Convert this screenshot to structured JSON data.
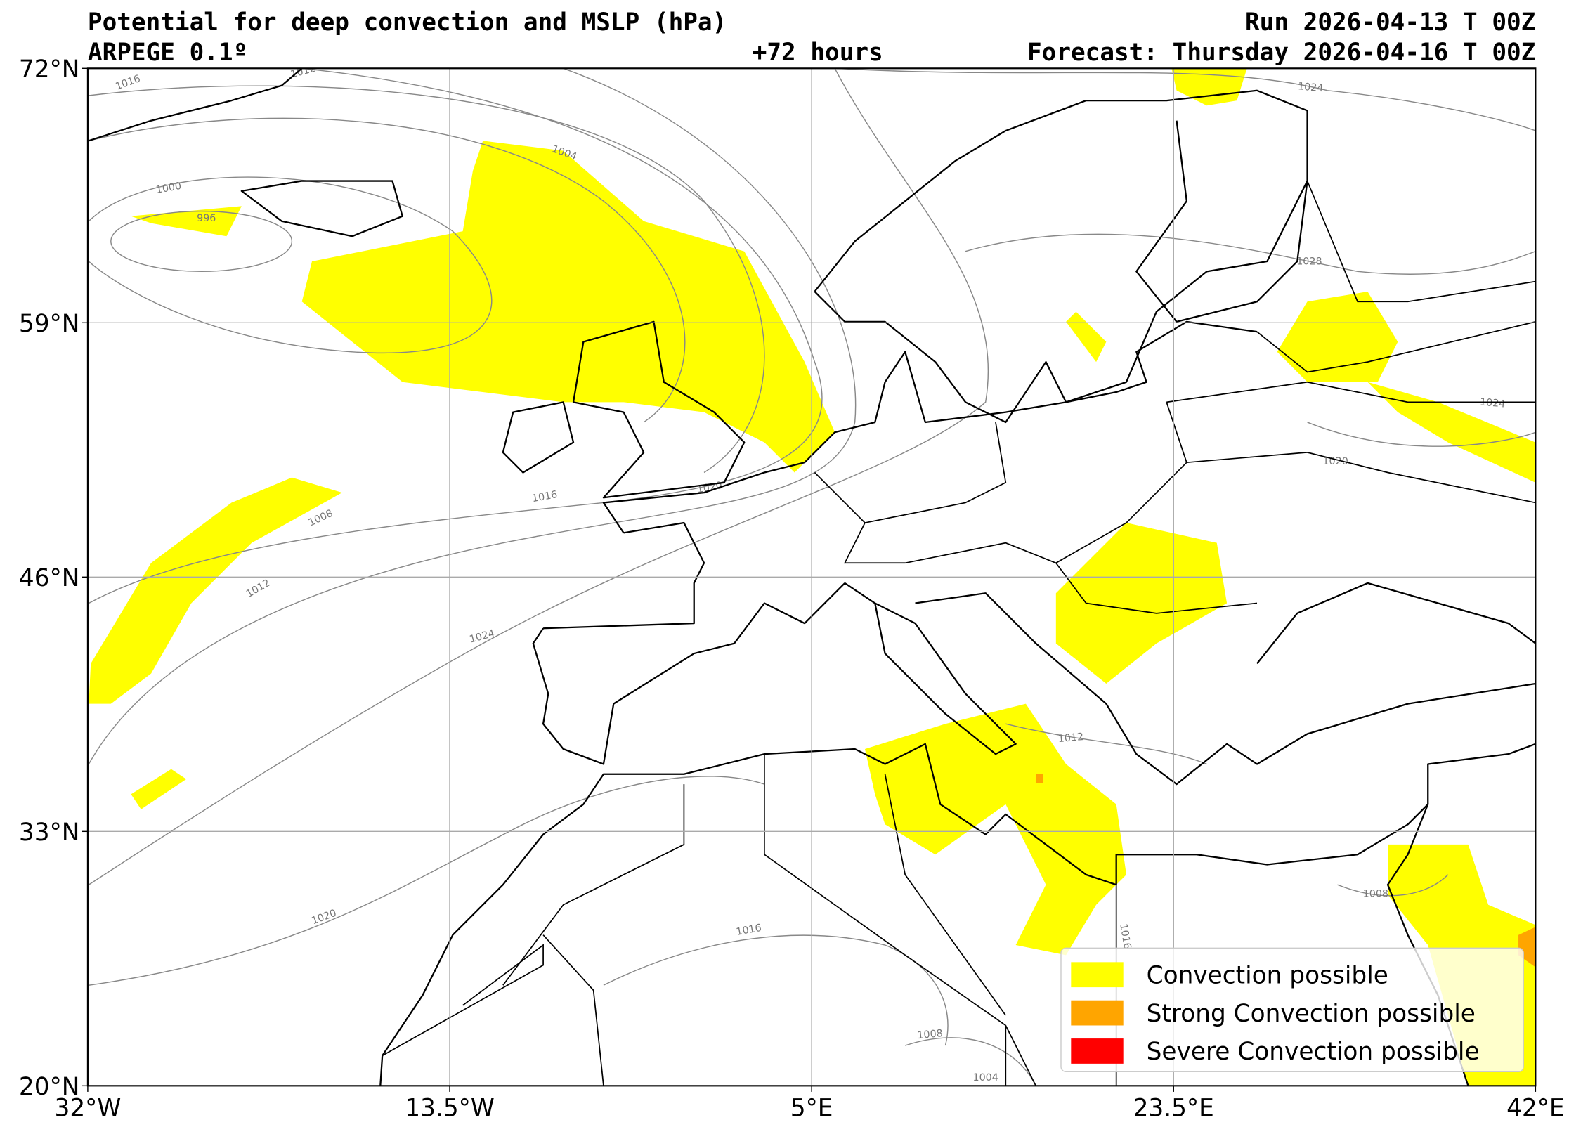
{
  "header": {
    "title": "Potential for deep convection and MSLP (hPa)",
    "model": "ARPEGE 0.1º",
    "lead_time": "+72 hours",
    "run": "Run 2026-04-13 T 00Z",
    "forecast": "Forecast: Thursday 2026-04-16 T 00Z"
  },
  "map": {
    "lon_range": [
      -32,
      42
    ],
    "lat_range": [
      20,
      72
    ],
    "lon_ticks": [
      {
        "value": -32,
        "label": "32°W"
      },
      {
        "value": -13.5,
        "label": "13.5°W"
      },
      {
        "value": 5,
        "label": "5°E"
      },
      {
        "value": 23.5,
        "label": "23.5°E"
      },
      {
        "value": 42,
        "label": "42°E"
      }
    ],
    "lat_ticks": [
      {
        "value": 20,
        "label": "20°N"
      },
      {
        "value": 33,
        "label": "33°N"
      },
      {
        "value": 46,
        "label": "46°N"
      },
      {
        "value": 59,
        "label": "59°N"
      },
      {
        "value": 72,
        "label": "72°N"
      }
    ],
    "isobar_labels": [
      "1016",
      "1012",
      "1004",
      "1000",
      "996",
      "1008",
      "1012",
      "1016",
      "1020",
      "1024",
      "1028",
      "1024",
      "1020",
      "1012",
      "1008",
      "1016",
      "1020",
      "1008",
      "1004",
      "1024",
      "1016"
    ]
  },
  "legend": {
    "items": [
      {
        "label": "Convection possible",
        "color": "#ffff00"
      },
      {
        "label": "Strong Convection possible",
        "color": "#ffa500"
      },
      {
        "label": "Severe Convection possible",
        "color": "#ff0000"
      }
    ]
  }
}
